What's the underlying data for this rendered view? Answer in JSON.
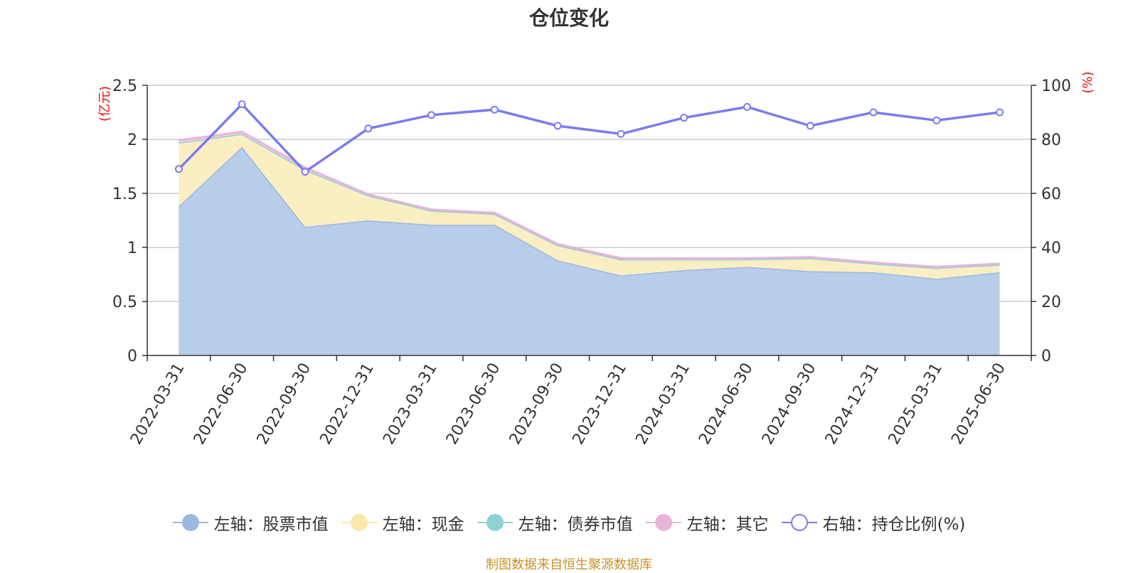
{
  "chart_data": {
    "type": "area",
    "title": "仓位变化",
    "categories": [
      "2022-03-31",
      "2022-06-30",
      "2022-09-30",
      "2022-12-31",
      "2023-03-31",
      "2023-06-30",
      "2023-09-30",
      "2023-12-31",
      "2024-03-31",
      "2024-06-30",
      "2024-09-30",
      "2024-12-31",
      "2025-03-31",
      "2025-06-30"
    ],
    "left_axis": {
      "unit": "(亿元)",
      "ticks": [
        "0",
        "0.5",
        "1",
        "1.5",
        "2",
        "2.5"
      ],
      "ylim": [
        0,
        2.5
      ]
    },
    "right_axis": {
      "unit": "(%)",
      "ticks": [
        "0",
        "20",
        "40",
        "60",
        "80",
        "100"
      ],
      "ylim": [
        0,
        100
      ]
    },
    "stacked": true,
    "series": [
      {
        "name": "左轴：股票市值",
        "axis": "left",
        "kind": "area",
        "color": "#9ab8e0",
        "fill": "#b8cdea",
        "values": [
          1.38,
          1.93,
          1.19,
          1.25,
          1.21,
          1.21,
          0.88,
          0.74,
          0.79,
          0.82,
          0.78,
          0.77,
          0.71,
          0.77
        ]
      },
      {
        "name": "左轴：现金",
        "axis": "left",
        "kind": "area",
        "color": "#f7e8aa",
        "fill": "#fbeec3",
        "values": [
          0.59,
          0.12,
          0.53,
          0.23,
          0.13,
          0.1,
          0.14,
          0.15,
          0.1,
          0.07,
          0.12,
          0.08,
          0.1,
          0.07
        ]
      },
      {
        "name": "左轴：债券市值",
        "axis": "left",
        "kind": "area",
        "color": "#8fd1d4",
        "fill": "#bfe7e8",
        "values": [
          0,
          0,
          0,
          0,
          0,
          0,
          0,
          0,
          0,
          0,
          0,
          0,
          0,
          0
        ]
      },
      {
        "name": "左轴：其它",
        "axis": "left",
        "kind": "area",
        "color": "#e8b4da",
        "fill": "#f1d0e8",
        "values": [
          0.02,
          0.02,
          0.02,
          0.01,
          0.01,
          0.01,
          0.01,
          0.01,
          0.01,
          0.01,
          0.01,
          0.01,
          0.01,
          0.01
        ]
      },
      {
        "name": "右轴：持仓比例(%)",
        "axis": "right",
        "kind": "line",
        "color": "#7b7bf0",
        "values": [
          69,
          93,
          68,
          84,
          89,
          91,
          85,
          82,
          88,
          92,
          85,
          90,
          87,
          90
        ]
      }
    ],
    "grid": true,
    "legend_position": "bottom"
  },
  "source_note": "制图数据来自恒生聚源数据库"
}
